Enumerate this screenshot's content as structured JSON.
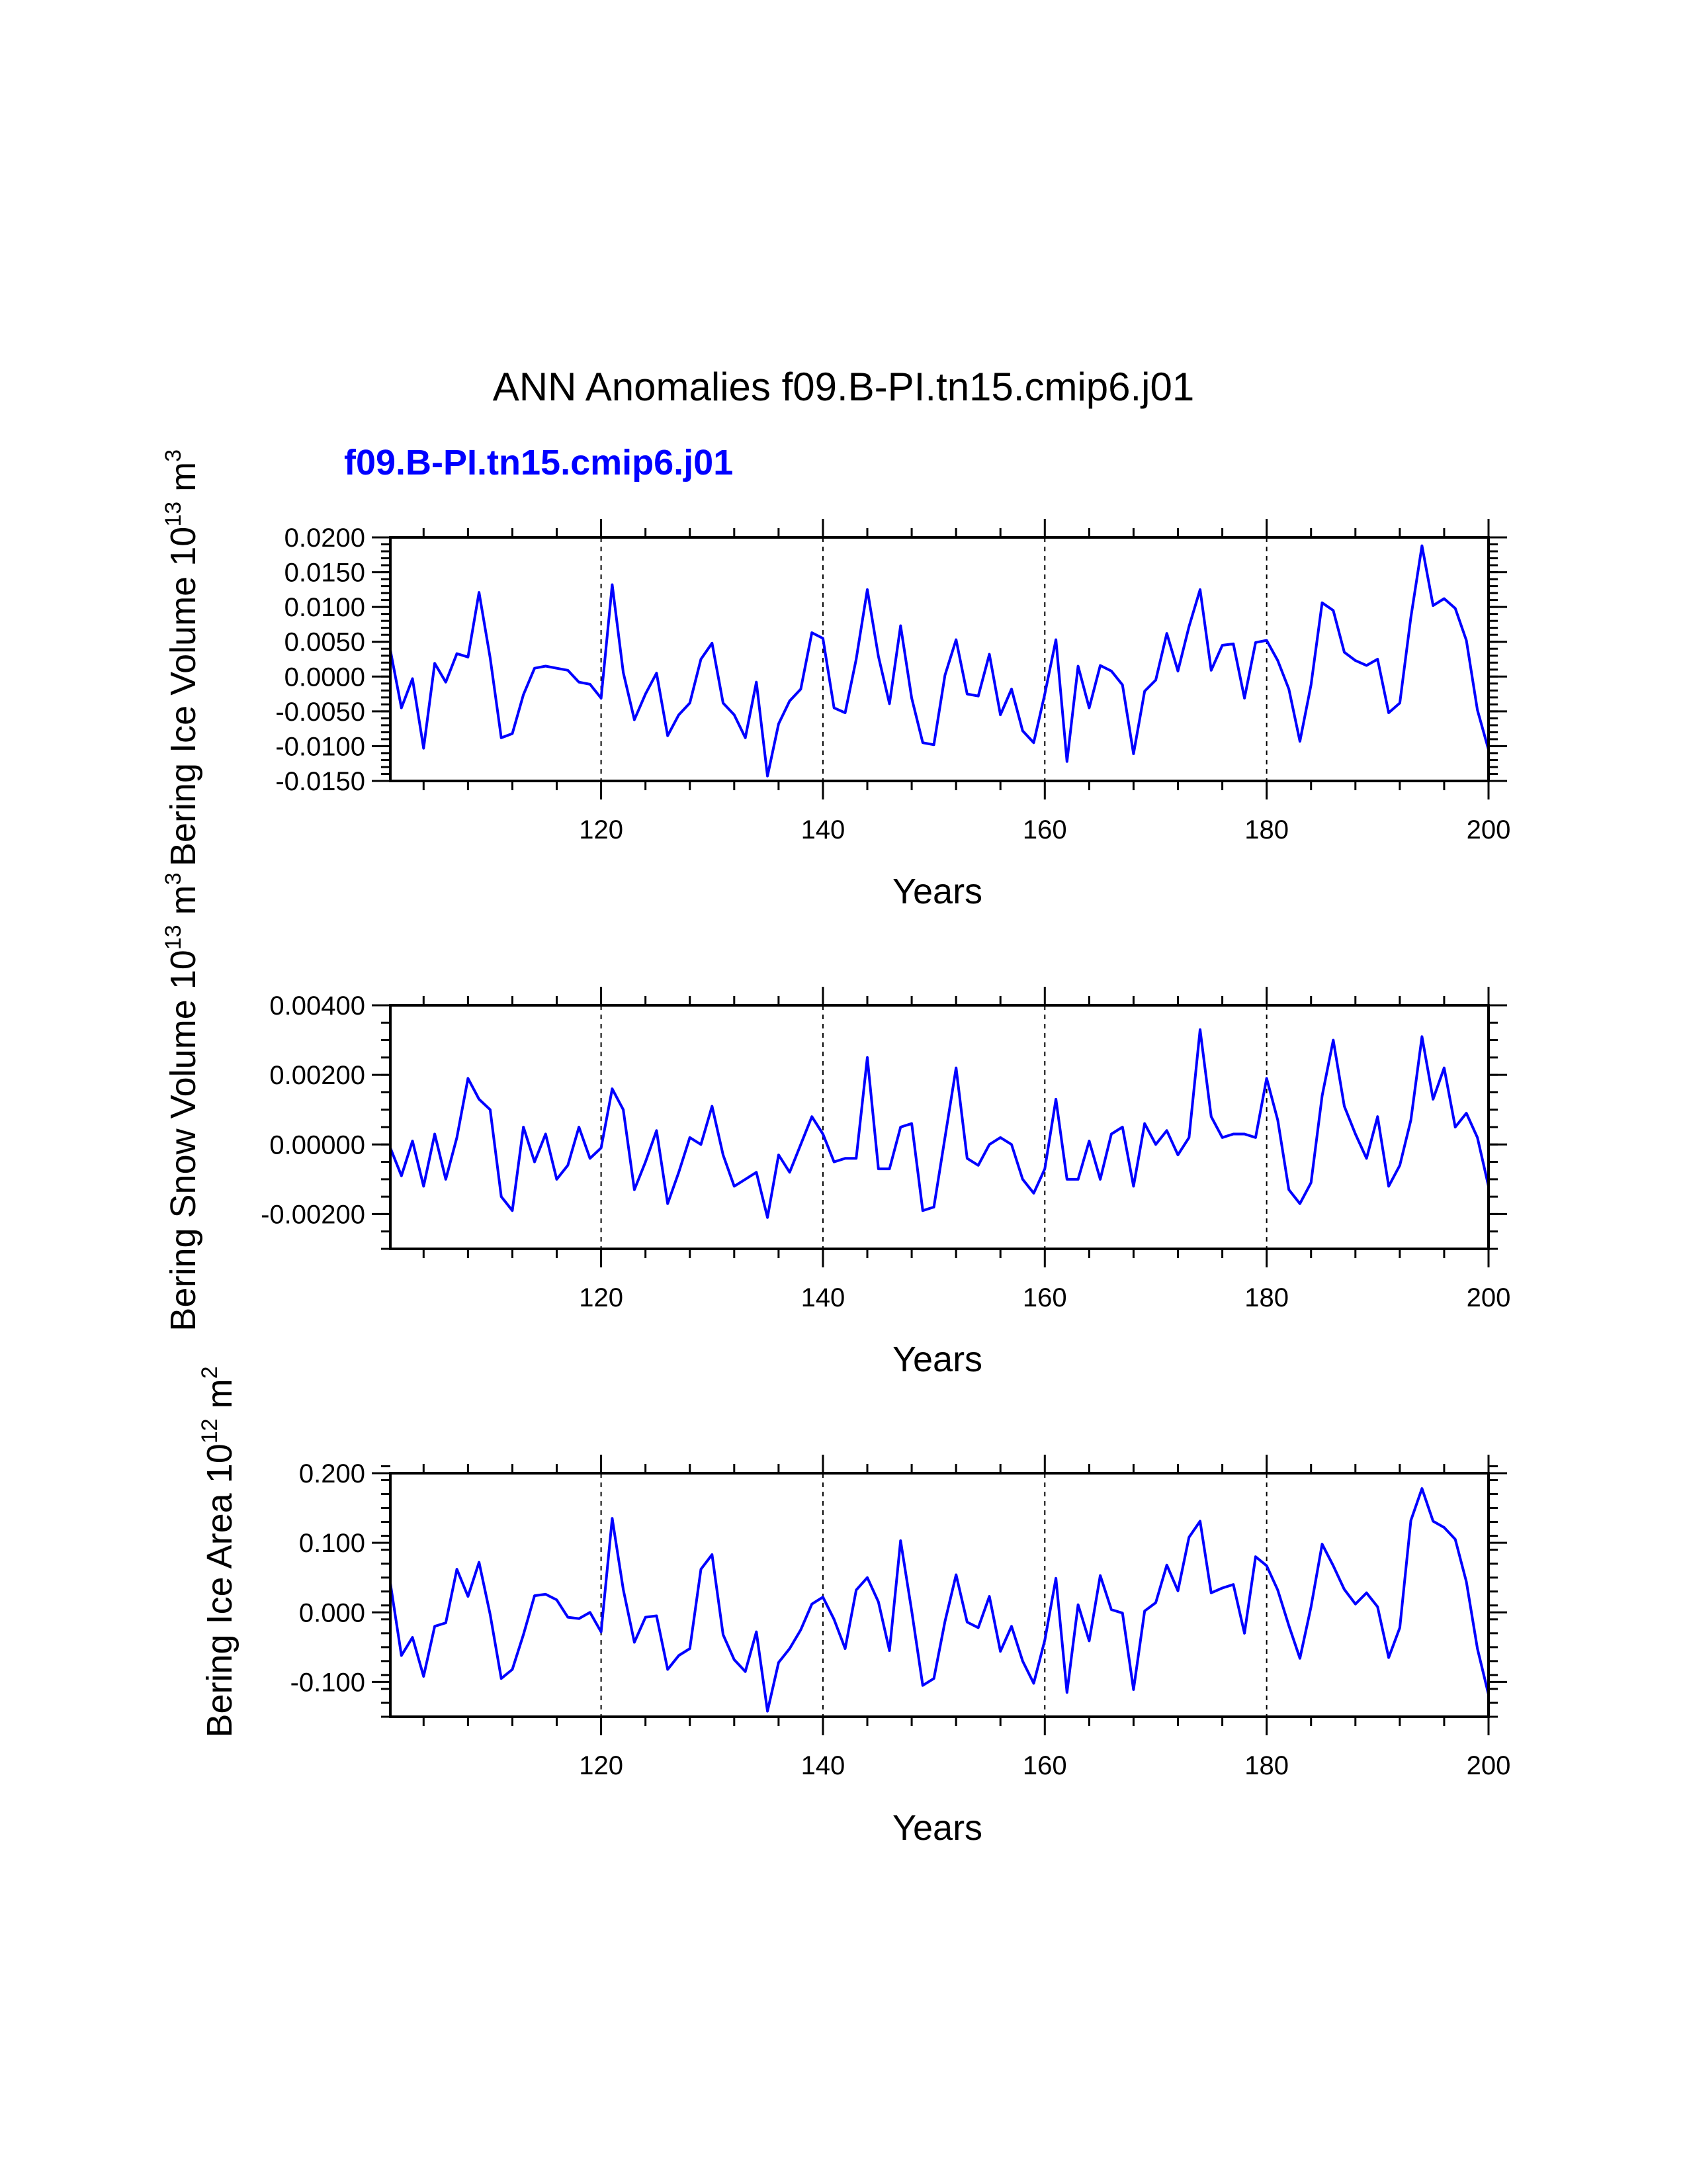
{
  "title": "ANN Anomalies f09.B-PI.tn15.cmip6.j01",
  "case_label": "f09.B-PI.tn15.cmip6.j01",
  "line_color": "#0000ff",
  "chart_data": [
    {
      "type": "line",
      "series_name": "f09.B-PI.tn15.cmip6.j01",
      "ylabel_prefix": "Bering Ice Volume 10",
      "ylabel_exp": "13",
      "ylabel_unit": " m",
      "ylabel_unit_exp": "3",
      "xlabel": "Years",
      "xlim": [
        101,
        200
      ],
      "ylim": [
        -0.015,
        0.02
      ],
      "x_ticks": [
        120,
        140,
        160,
        180,
        200
      ],
      "x_tick_labels": [
        "120",
        "140",
        "160",
        "180",
        "200"
      ],
      "y_ticks": [
        -0.015,
        -0.01,
        -0.005,
        0,
        0.005,
        0.01,
        0.015,
        0.02
      ],
      "y_tick_labels": [
        "-0.0150",
        "-0.0100",
        "-0.0050",
        "0.0000",
        "0.0050",
        "0.0100",
        "0.0150",
        "0.0200"
      ],
      "y_minor_step": 0.001,
      "x_minor_step": 4,
      "vlines": [
        120,
        140,
        160,
        180
      ],
      "x_start": 101,
      "values": [
        0.0038,
        -0.0045,
        -0.0003,
        -0.0103,
        0.0019,
        -0.0008,
        0.0033,
        0.0028,
        0.0121,
        0.0027,
        -0.0088,
        -0.0082,
        -0.0026,
        0.0012,
        0.0015,
        0.0012,
        0.0009,
        -0.0008,
        -0.0011,
        -0.0031,
        0.0132,
        0.0006,
        -0.0062,
        -0.0025,
        0.0005,
        -0.0085,
        -0.0055,
        -0.0038,
        0.0025,
        0.0048,
        -0.0038,
        -0.0055,
        -0.0088,
        -0.0008,
        -0.0143,
        -0.0068,
        -0.0035,
        -0.0018,
        0.0063,
        0.0055,
        -0.0045,
        -0.0052,
        0.0025,
        0.0125,
        0.0029,
        -0.0039,
        0.0073,
        -0.0031,
        -0.0095,
        -0.0098,
        0.0002,
        0.0053,
        -0.0025,
        -0.0028,
        0.0032,
        -0.0055,
        -0.0018,
        -0.0078,
        -0.0095,
        -0.0025,
        0.0053,
        -0.0122,
        0.0015,
        -0.0045,
        0.0016,
        0.0008,
        -0.0012,
        -0.0111,
        -0.0021,
        -0.0005,
        0.0062,
        0.0008,
        0.0072,
        0.0125,
        0.0009,
        0.0045,
        0.0047,
        -0.0031,
        0.0049,
        0.0052,
        0.0023,
        -0.0018,
        -0.0093,
        -0.0012,
        0.0106,
        0.0095,
        0.0035,
        0.0023,
        0.0016,
        0.0025,
        -0.0052,
        -0.0038,
        0.0085,
        0.0188,
        0.0102,
        0.0112,
        0.0098,
        0.0052,
        -0.0048,
        -0.0105
      ]
    },
    {
      "type": "line",
      "series_name": "f09.B-PI.tn15.cmip6.j01",
      "ylabel_prefix": "Bering Snow Volume 10",
      "ylabel_exp": "13",
      "ylabel_unit": " m",
      "ylabel_unit_exp": "3",
      "xlabel": "Years",
      "xlim": [
        101,
        200
      ],
      "ylim": [
        -0.003,
        0.004
      ],
      "x_ticks": [
        120,
        140,
        160,
        180,
        200
      ],
      "x_tick_labels": [
        "120",
        "140",
        "160",
        "180",
        "200"
      ],
      "y_ticks": [
        -0.002,
        0,
        0.002,
        0.004
      ],
      "y_tick_labels": [
        "-0.00200",
        "0.00000",
        "0.00200",
        "0.00400"
      ],
      "y_minor_step": 0.0005,
      "x_minor_step": 4,
      "vlines": [
        120,
        140,
        160,
        180
      ],
      "x_start": 101,
      "values": [
        -0.0001,
        -0.0009,
        0.0001,
        -0.0012,
        0.0003,
        -0.001,
        0.0002,
        0.0019,
        0.0013,
        0.001,
        -0.0015,
        -0.0019,
        0.0005,
        -0.0005,
        0.0003,
        -0.001,
        -0.0006,
        0.0005,
        -0.0004,
        -0.0001,
        0.0016,
        0.001,
        -0.0013,
        -0.0005,
        0.0004,
        -0.0017,
        -0.0008,
        0.0002,
        0.0,
        0.0011,
        -0.0003,
        -0.0012,
        -0.001,
        -0.0008,
        -0.0021,
        -0.0003,
        -0.0008,
        0.0,
        0.0008,
        0.0003,
        -0.0005,
        -0.0004,
        -0.0004,
        0.0025,
        -0.0007,
        -0.0007,
        0.0005,
        0.0006,
        -0.0019,
        -0.0018,
        0.0002,
        0.0022,
        -0.0004,
        -0.0006,
        0.0,
        0.0002,
        0.0,
        -0.001,
        -0.0014,
        -0.0007,
        0.0013,
        -0.001,
        -0.001,
        0.0001,
        -0.001,
        0.0003,
        0.0005,
        -0.0012,
        0.0006,
        0.0,
        0.0004,
        -0.0003,
        0.0002,
        0.0033,
        0.0008,
        0.0002,
        0.0003,
        0.0003,
        0.0002,
        0.0019,
        0.0007,
        -0.0013,
        -0.0017,
        -0.0011,
        0.0014,
        0.003,
        0.0011,
        0.0003,
        -0.0004,
        0.0008,
        -0.0012,
        -0.0006,
        0.0007,
        0.0031,
        0.0013,
        0.0022,
        0.0005,
        0.0009,
        0.0002,
        -0.0012
      ]
    },
    {
      "type": "line",
      "series_name": "f09.B-PI.tn15.cmip6.j01",
      "ylabel_prefix": "Bering Ice Area 10",
      "ylabel_exp": "12",
      "ylabel_unit": " m",
      "ylabel_unit_exp": "2",
      "xlabel": "Years",
      "xlim": [
        101,
        200
      ],
      "ylim": [
        -0.15,
        0.2
      ],
      "x_ticks": [
        120,
        140,
        160,
        180,
        200
      ],
      "x_tick_labels": [
        "120",
        "140",
        "160",
        "180",
        "200"
      ],
      "y_ticks": [
        -0.1,
        0,
        0.1,
        0.2
      ],
      "y_tick_labels": [
        "-0.100",
        "0.000",
        "0.100",
        "0.200"
      ],
      "y_minor_step": 0.02,
      "x_minor_step": 4,
      "vlines": [
        120,
        140,
        160,
        180
      ],
      "x_start": 101,
      "values": [
        0.042,
        -0.062,
        -0.036,
        -0.092,
        -0.02,
        -0.015,
        0.062,
        0.023,
        0.072,
        -0.003,
        -0.095,
        -0.082,
        -0.032,
        0.024,
        0.026,
        0.018,
        -0.007,
        -0.009,
        0.0,
        -0.028,
        0.135,
        0.033,
        -0.043,
        -0.007,
        -0.005,
        -0.082,
        -0.062,
        -0.052,
        0.062,
        0.083,
        -0.032,
        -0.068,
        -0.085,
        -0.028,
        -0.142,
        -0.072,
        -0.052,
        -0.025,
        0.012,
        0.022,
        -0.01,
        -0.052,
        0.032,
        0.05,
        0.015,
        -0.055,
        0.103,
        0.002,
        -0.105,
        -0.095,
        -0.013,
        0.054,
        -0.014,
        -0.022,
        0.023,
        -0.056,
        -0.02,
        -0.07,
        -0.102,
        -0.04,
        0.049,
        -0.115,
        0.011,
        -0.041,
        0.053,
        0.004,
        -0.001,
        -0.111,
        0.002,
        0.014,
        0.068,
        0.031,
        0.108,
        0.131,
        0.028,
        0.035,
        0.04,
        -0.03,
        0.08,
        0.067,
        0.032,
        -0.019,
        -0.066,
        0.008,
        0.098,
        0.067,
        0.033,
        0.012,
        0.028,
        0.008,
        -0.065,
        -0.022,
        0.132,
        0.178,
        0.131,
        0.122,
        0.105,
        0.044,
        -0.052,
        -0.118
      ]
    }
  ]
}
